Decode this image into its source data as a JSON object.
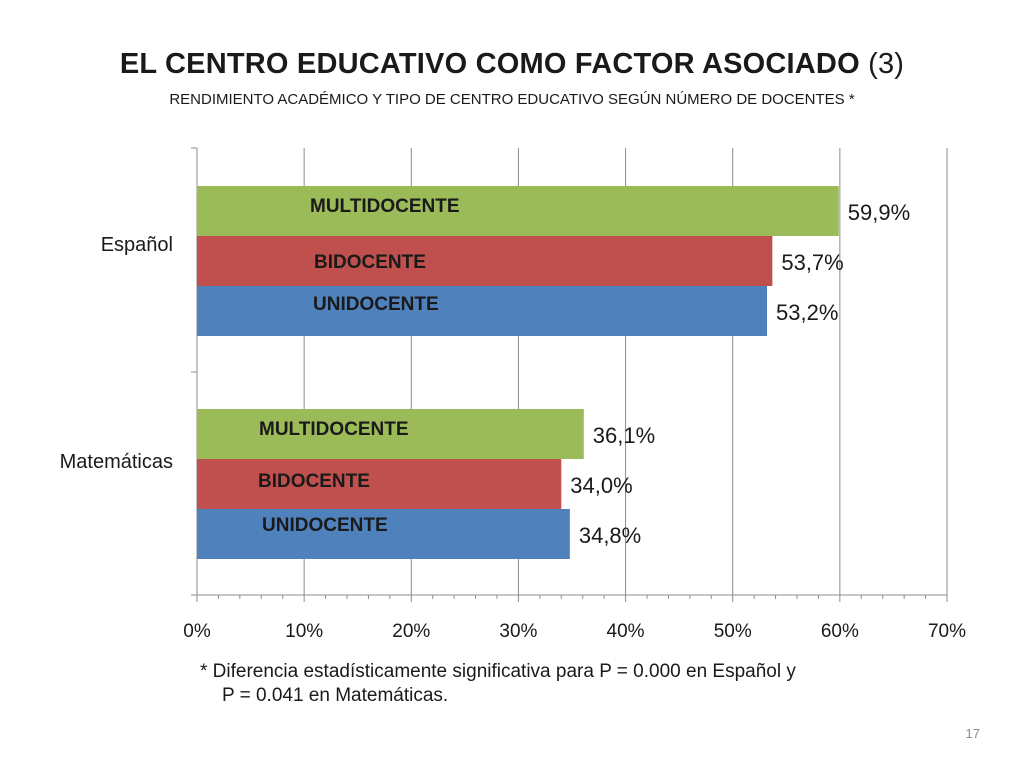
{
  "slide": {
    "title": "EL CENTRO EDUCATIVO COMO FACTOR ASOCIADO",
    "title_suffix": "(3)",
    "subtitle": "RENDIMIENTO ACADÉMICO Y TIPO DE CENTRO EDUCATIVO SEGÚN NÚMERO DE DOCENTES *",
    "footnote_line1": "* Diferencia estadísticamente significativa para P = 0.000 en Español  y",
    "footnote_line2": "P = 0.041 en Matemáticas.",
    "page_number": "17"
  },
  "chart_data": {
    "type": "bar",
    "orientation": "horizontal",
    "categories": [
      "Español",
      "Matemáticas"
    ],
    "series": [
      {
        "name": "MULTIDOCENTE",
        "values": [
          59.9,
          36.1
        ],
        "labels": [
          "59,9%",
          "36,1%"
        ],
        "color": "#9BBB59"
      },
      {
        "name": "BIDOCENTE",
        "values": [
          53.7,
          34.0
        ],
        "labels": [
          "53,7%",
          "34,0%"
        ],
        "color": "#C0504D"
      },
      {
        "name": "UNIDOCENTE",
        "values": [
          53.2,
          34.8
        ],
        "labels": [
          "53,2%",
          "34,8%"
        ],
        "color": "#4F81BD"
      }
    ],
    "xlim": [
      0,
      70
    ],
    "xticks": [
      0,
      10,
      20,
      30,
      40,
      50,
      60,
      70
    ],
    "xtick_labels": [
      "0%",
      "10%",
      "20%",
      "30%",
      "40%",
      "50%",
      "60%",
      "70%"
    ],
    "grid": "vertical major gridlines",
    "legend": "none (series names written inside bars)"
  }
}
